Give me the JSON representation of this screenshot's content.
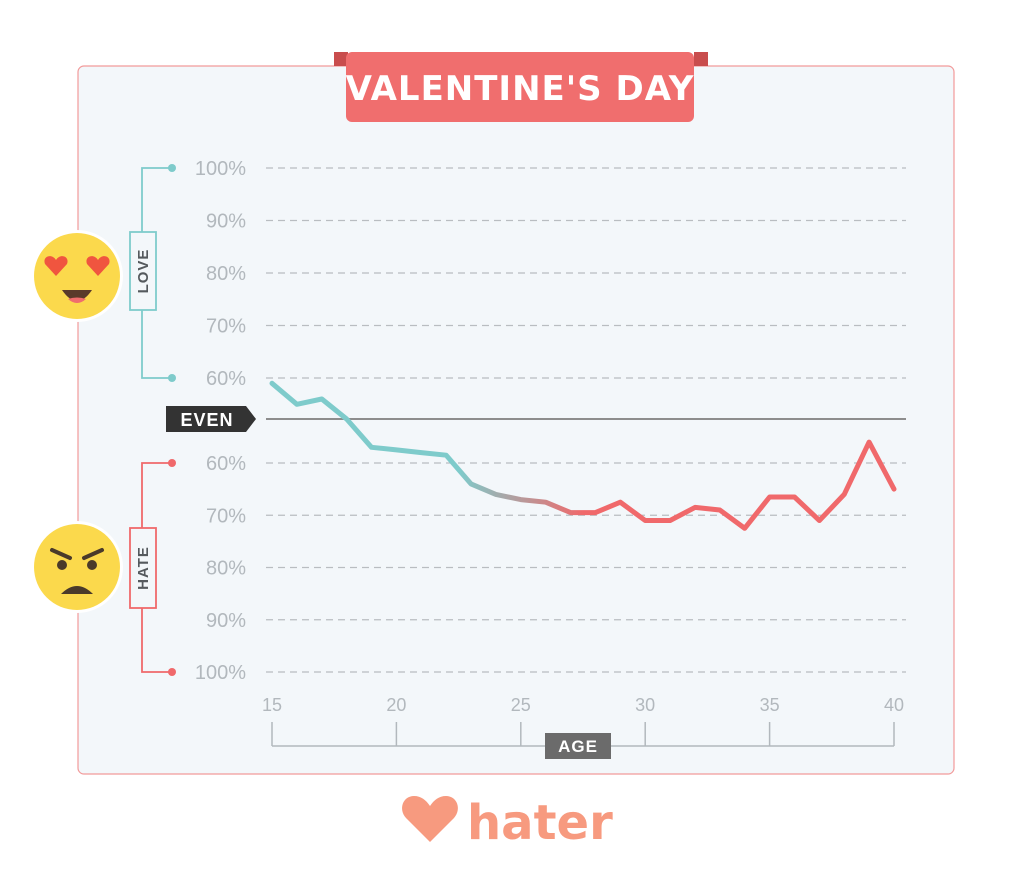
{
  "title": "VALENTINE'S DAY",
  "even_label": "EVEN",
  "love_label": "LOVE",
  "hate_label": "HATE",
  "brand": "hater",
  "colors": {
    "love": "#7ecbcb",
    "hate": "#f0696b",
    "title_bg": "#f06e6e",
    "brand": "#f79a7f",
    "panel_bg": "#f3f7fa",
    "panel_border": "#f29a9a",
    "emoji": "#fbd94c",
    "even_tag": "#333333",
    "axis_tag": "#6b6b6b"
  },
  "chart_data": {
    "type": "line",
    "xlabel": "AGE",
    "title": "VALENTINE'S DAY",
    "x_ticks": [
      15,
      20,
      25,
      30,
      35,
      40
    ],
    "love_ticks": [
      "100%",
      "90%",
      "80%",
      "70%",
      "60%"
    ],
    "hate_ticks": [
      "60%",
      "70%",
      "80%",
      "90%",
      "100%"
    ],
    "xlim": [
      15,
      40
    ],
    "ylim": [
      -100,
      100
    ],
    "y_unit": "% love (positive) / % hate (negative); 0 = even",
    "grid": true,
    "series": [
      {
        "x": [
          15,
          16,
          17,
          18,
          19,
          20,
          21,
          22,
          23,
          24,
          25,
          26,
          27,
          28,
          29,
          30,
          31,
          32,
          33,
          34,
          35,
          36,
          37,
          38,
          39,
          40
        ],
        "y": [
          59,
          55,
          56,
          0,
          -57,
          -57.5,
          -58,
          -58.5,
          -64,
          -66,
          -67,
          -67.5,
          -69.5,
          -69.5,
          -67.5,
          -71,
          -71,
          -68.5,
          -69,
          -72.5,
          -66.5,
          -66.5,
          -71,
          -66,
          -56,
          -65
        ]
      }
    ]
  }
}
